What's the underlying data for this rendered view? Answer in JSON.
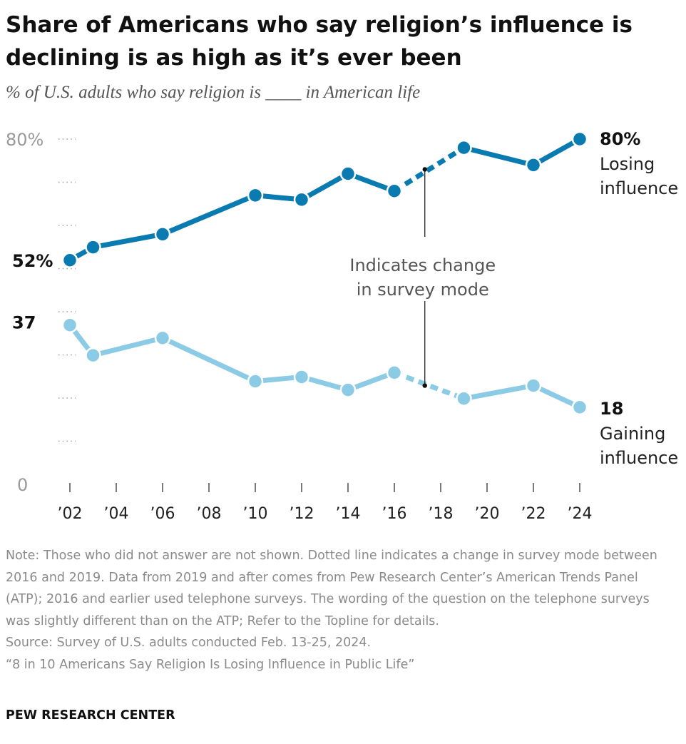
{
  "title": "Share of Americans who say religion’s influence is declining is as high as it’s ever been",
  "subtitle": "% of U.S. adults who say religion is ____ in American life",
  "chart_data": {
    "type": "line",
    "x": [
      2002,
      2003,
      2006,
      2010,
      2012,
      2014,
      2016,
      2019,
      2022,
      2024
    ],
    "xticks": [
      2002,
      2004,
      2006,
      2008,
      2010,
      2012,
      2014,
      2016,
      2018,
      2020,
      2022,
      2024
    ],
    "xtick_labels": [
      "’02",
      "’04",
      "’06",
      "’08",
      "’10",
      "’12",
      "’14",
      "’16",
      "’18",
      "’20",
      "’22",
      "’24"
    ],
    "ylim": [
      0,
      80
    ],
    "ytick_labels": [
      "80%",
      "0"
    ],
    "grid": "dotted ticks",
    "series": [
      {
        "name": "Losing influence",
        "values": [
          52,
          55,
          58,
          67,
          66,
          72,
          68,
          78,
          74,
          80
        ],
        "start_label": "52%",
        "end_value_label": "80%",
        "end_label_lines": [
          "Losing",
          "influence"
        ],
        "color": "#0a7bb0"
      },
      {
        "name": "Gaining influence",
        "values": [
          37,
          30,
          34,
          24,
          25,
          22,
          26,
          20,
          23,
          18
        ],
        "start_label": "37",
        "end_value_label": "18",
        "end_label_lines": [
          "Gaining",
          "influence"
        ],
        "color": "#8ccbe6"
      }
    ],
    "mode_change_between": [
      2016,
      2019
    ],
    "annotation_lines": [
      "Indicates change",
      "in survey mode"
    ]
  },
  "notes": [
    "Note: Those who did not answer are not shown. Dotted line indicates a change in survey mode between 2016 and 2019. Data from 2019 and after comes from Pew Research Center’s American Trends Panel (ATP); 2016 and earlier used telephone surveys. The wording of the question on the telephone surveys was slightly different than on the ATP; Refer to the Topline for details.",
    "Source: Survey of U.S. adults conducted Feb. 13-25, 2024.",
    "“8 in 10 Americans Say Religion Is Losing Influence in Public Life”"
  ],
  "brand": "PEW RESEARCH CENTER"
}
